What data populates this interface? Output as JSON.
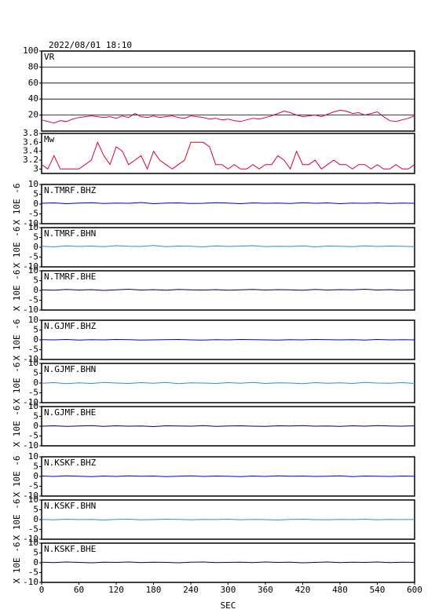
{
  "chart_data": [
    {
      "type": "line",
      "title": "2022/08/01 18:10",
      "xlim": [
        0,
        600
      ],
      "ylim": [
        0,
        100
      ],
      "yticks": [
        20,
        40,
        60,
        80,
        100
      ],
      "grid": true,
      "x": [
        0,
        10,
        20,
        30,
        40,
        50,
        60,
        70,
        80,
        90,
        100,
        110,
        120,
        130,
        140,
        150,
        160,
        170,
        180,
        190,
        200,
        210,
        220,
        230,
        240,
        250,
        260,
        270,
        280,
        290,
        300,
        310,
        320,
        330,
        340,
        350,
        360,
        370,
        380,
        390,
        400,
        410,
        420,
        430,
        440,
        450,
        460,
        470,
        480,
        490,
        500,
        510,
        520,
        530,
        540,
        550,
        560,
        570,
        580,
        590,
        600
      ],
      "series": [
        {
          "name": "VR",
          "color": "#dd0033",
          "values": [
            14,
            12,
            10,
            13,
            12,
            15,
            17,
            18,
            19,
            18,
            17,
            18,
            16,
            19,
            17,
            22,
            18,
            17,
            19,
            17,
            18,
            19,
            17,
            16,
            19,
            18,
            17,
            15,
            16,
            14,
            15,
            13,
            12,
            14,
            16,
            15,
            17,
            19,
            22,
            25,
            23,
            20,
            18,
            19,
            20,
            18,
            21,
            24,
            26,
            25,
            22,
            23,
            20,
            22,
            24,
            18,
            13,
            12,
            14,
            16,
            19
          ]
        }
      ]
    },
    {
      "type": "line",
      "xlim": [
        0,
        600
      ],
      "ylim": [
        2.9,
        3.8
      ],
      "yticks": [
        3.0,
        3.2,
        3.4,
        3.6,
        3.8
      ],
      "x": [
        0,
        10,
        20,
        30,
        40,
        50,
        60,
        70,
        80,
        90,
        100,
        110,
        120,
        130,
        140,
        150,
        160,
        170,
        180,
        190,
        200,
        210,
        220,
        230,
        240,
        250,
        260,
        270,
        280,
        290,
        300,
        310,
        320,
        330,
        340,
        350,
        360,
        370,
        380,
        390,
        400,
        410,
        420,
        430,
        440,
        450,
        460,
        470,
        480,
        490,
        500,
        510,
        520,
        530,
        540,
        550,
        560,
        570,
        580,
        590,
        600
      ],
      "series": [
        {
          "name": "Mw",
          "color": "#dd0033",
          "values": [
            3.1,
            3.0,
            3.3,
            3.0,
            3.0,
            3.0,
            3.0,
            3.1,
            3.2,
            3.6,
            3.3,
            3.1,
            3.5,
            3.4,
            3.1,
            3.2,
            3.3,
            3.0,
            3.4,
            3.2,
            3.1,
            3.0,
            3.1,
            3.2,
            3.6,
            3.6,
            3.6,
            3.5,
            3.1,
            3.1,
            3.0,
            3.1,
            3.0,
            3.0,
            3.1,
            3.0,
            3.1,
            3.1,
            3.3,
            3.2,
            3.0,
            3.4,
            3.1,
            3.1,
            3.2,
            3.0,
            3.1,
            3.2,
            3.1,
            3.1,
            3.0,
            3.1,
            3.1,
            3.0,
            3.1,
            3.0,
            3.0,
            3.1,
            3.0,
            3.0,
            3.1
          ]
        }
      ]
    },
    {
      "type": "line",
      "xlim": [
        0,
        600
      ],
      "ylim": [
        -10,
        10
      ],
      "yticks": [
        -10,
        -5,
        0,
        5,
        10
      ],
      "ylabel": "X 10E -6",
      "x": [
        0,
        20,
        40,
        60,
        80,
        100,
        120,
        140,
        160,
        180,
        200,
        220,
        240,
        260,
        280,
        300,
        320,
        340,
        360,
        380,
        400,
        420,
        440,
        460,
        480,
        500,
        520,
        540,
        560,
        580,
        600
      ],
      "series": [
        {
          "name": "N.TMRF.BHZ",
          "color": "#0000cc",
          "values": [
            0.4,
            0.6,
            0.2,
            0.5,
            0.7,
            0.3,
            0.5,
            0.4,
            0.8,
            0.2,
            0.5,
            0.6,
            0.3,
            0.4,
            0.7,
            0.5,
            0.2,
            0.6,
            0.4,
            0.5,
            0.3,
            0.7,
            0.4,
            0.6,
            0.2,
            0.5,
            0.4,
            0.6,
            0.3,
            0.5,
            0.4
          ]
        }
      ]
    },
    {
      "type": "line",
      "xlim": [
        0,
        600
      ],
      "ylim": [
        -10,
        10
      ],
      "yticks": [
        -10,
        -5,
        0,
        5,
        10
      ],
      "ylabel": "X 10E -6",
      "x": [
        0,
        20,
        40,
        60,
        80,
        100,
        120,
        140,
        160,
        180,
        200,
        220,
        240,
        260,
        280,
        300,
        320,
        340,
        360,
        380,
        400,
        420,
        440,
        460,
        480,
        500,
        520,
        540,
        560,
        580,
        600
      ],
      "series": [
        {
          "name": "N.TMRF.BHN",
          "color": "#2a8ae6",
          "values": [
            0.5,
            0.2,
            0.7,
            0.4,
            0.6,
            0.3,
            0.8,
            0.5,
            0.4,
            0.9,
            0.3,
            0.6,
            0.5,
            0.2,
            0.7,
            0.4,
            0.6,
            0.8,
            0.3,
            0.5,
            0.4,
            0.7,
            0.2,
            0.6,
            0.5,
            0.3,
            0.7,
            0.4,
            0.6,
            0.5,
            0.3
          ]
        }
      ]
    },
    {
      "type": "line",
      "xlim": [
        0,
        600
      ],
      "ylim": [
        -10,
        10
      ],
      "yticks": [
        -10,
        -5,
        0,
        5,
        10
      ],
      "ylabel": "X 10E -6",
      "x": [
        0,
        20,
        40,
        60,
        80,
        100,
        120,
        140,
        160,
        180,
        200,
        220,
        240,
        260,
        280,
        300,
        320,
        340,
        360,
        380,
        400,
        420,
        440,
        460,
        480,
        500,
        520,
        540,
        560,
        580,
        600
      ],
      "series": [
        {
          "name": "N.TMRF.BHE",
          "color": "#000066",
          "values": [
            0.3,
            0.1,
            0.5,
            0.2,
            0.4,
            0.0,
            0.3,
            0.6,
            0.2,
            0.4,
            0.1,
            0.5,
            0.3,
            0.2,
            0.4,
            0.1,
            0.3,
            0.5,
            0.2,
            0.4,
            0.3,
            0.1,
            0.5,
            0.2,
            0.4,
            0.3,
            0.6,
            0.2,
            0.4,
            0.1,
            0.3
          ]
        }
      ]
    },
    {
      "type": "line",
      "xlim": [
        0,
        600
      ],
      "ylim": [
        -10,
        10
      ],
      "yticks": [
        -10,
        -5,
        0,
        5,
        10
      ],
      "ylabel": "X 10E -6",
      "x": [
        0,
        20,
        40,
        60,
        80,
        100,
        120,
        140,
        160,
        180,
        200,
        220,
        240,
        260,
        280,
        300,
        320,
        340,
        360,
        380,
        400,
        420,
        440,
        460,
        480,
        500,
        520,
        540,
        560,
        580,
        600
      ],
      "series": [
        {
          "name": "N.GJMF.BHZ",
          "color": "#0000cc",
          "values": [
            0.1,
            0.0,
            0.2,
            -0.1,
            0.1,
            0.0,
            0.2,
            0.1,
            -0.1,
            0.0,
            0.1,
            0.2,
            0.0,
            -0.1,
            0.1,
            0.0,
            0.2,
            0.1,
            0.0,
            -0.1,
            0.1,
            0.0,
            0.2,
            0.1,
            0.0,
            0.1,
            -0.1,
            0.2,
            0.0,
            0.1,
            0.0
          ]
        }
      ]
    },
    {
      "type": "line",
      "xlim": [
        0,
        600
      ],
      "ylim": [
        -10,
        10
      ],
      "yticks": [
        -10,
        -5,
        0,
        5,
        10
      ],
      "ylabel": "X 10E -6",
      "x": [
        0,
        20,
        40,
        60,
        80,
        100,
        120,
        140,
        160,
        180,
        200,
        220,
        240,
        260,
        280,
        300,
        320,
        340,
        360,
        380,
        400,
        420,
        440,
        460,
        480,
        500,
        520,
        540,
        560,
        580,
        600
      ],
      "series": [
        {
          "name": "N.GJMF.BHN",
          "color": "#2a8ae6",
          "values": [
            -0.1,
            0.2,
            -0.3,
            0.1,
            -0.2,
            0.3,
            0.0,
            -0.2,
            0.2,
            -0.1,
            0.3,
            -0.3,
            0.1,
            0.0,
            -0.2,
            0.2,
            -0.1,
            0.3,
            -0.2,
            0.1,
            0.0,
            -0.3,
            0.2,
            -0.1,
            0.1,
            -0.2,
            0.3,
            0.0,
            -0.1,
            0.2,
            -0.2
          ]
        }
      ]
    },
    {
      "type": "line",
      "xlim": [
        0,
        600
      ],
      "ylim": [
        -10,
        10
      ],
      "yticks": [
        -10,
        -5,
        0,
        5,
        10
      ],
      "ylabel": "X 10E -6",
      "x": [
        0,
        20,
        40,
        60,
        80,
        100,
        120,
        140,
        160,
        180,
        200,
        220,
        240,
        260,
        280,
        300,
        320,
        340,
        360,
        380,
        400,
        420,
        440,
        460,
        480,
        500,
        520,
        540,
        560,
        580,
        600
      ],
      "series": [
        {
          "name": "N.GJMF.BHE",
          "color": "#000066",
          "values": [
            0.0,
            0.2,
            -0.1,
            0.1,
            0.3,
            -0.1,
            0.2,
            0.0,
            0.1,
            -0.2,
            0.2,
            0.1,
            0.0,
            0.3,
            -0.1,
            0.1,
            0.2,
            0.0,
            -0.1,
            0.2,
            0.1,
            0.3,
            0.0,
            0.1,
            -0.1,
            0.2,
            0.0,
            0.3,
            0.1,
            0.0,
            0.2
          ]
        }
      ]
    },
    {
      "type": "line",
      "xlim": [
        0,
        600
      ],
      "ylim": [
        -10,
        10
      ],
      "yticks": [
        -10,
        -5,
        0,
        5,
        10
      ],
      "ylabel": "X 10E -6",
      "x": [
        0,
        20,
        40,
        60,
        80,
        100,
        120,
        140,
        160,
        180,
        200,
        220,
        240,
        260,
        280,
        300,
        320,
        340,
        360,
        380,
        400,
        420,
        440,
        460,
        480,
        500,
        520,
        540,
        560,
        580,
        600
      ],
      "series": [
        {
          "name": "N.KSKF.BHZ",
          "color": "#0000cc",
          "values": [
            0.2,
            0.0,
            0.3,
            0.1,
            -0.1,
            0.2,
            0.0,
            0.3,
            0.1,
            0.2,
            -0.1,
            0.1,
            0.3,
            0.0,
            0.2,
            0.1,
            -0.1,
            0.2,
            0.0,
            0.3,
            0.1,
            0.2,
            0.0,
            0.1,
            0.3,
            -0.1,
            0.2,
            0.1,
            0.0,
            0.2,
            0.1
          ]
        }
      ]
    },
    {
      "type": "line",
      "xlim": [
        0,
        600
      ],
      "ylim": [
        -10,
        10
      ],
      "yticks": [
        -10,
        -5,
        0,
        5,
        10
      ],
      "ylabel": "X 10E -6",
      "x": [
        0,
        20,
        40,
        60,
        80,
        100,
        120,
        140,
        160,
        180,
        200,
        220,
        240,
        260,
        280,
        300,
        320,
        340,
        360,
        380,
        400,
        420,
        440,
        460,
        480,
        500,
        520,
        540,
        560,
        580,
        600
      ],
      "series": [
        {
          "name": "N.KSKF.BHN",
          "color": "#2a8ae6",
          "values": [
            0.1,
            -0.1,
            0.2,
            0.0,
            0.1,
            -0.2,
            0.1,
            0.2,
            -0.1,
            0.0,
            0.2,
            0.1,
            -0.1,
            0.1,
            0.0,
            0.2,
            -0.1,
            0.1,
            0.0,
            -0.2,
            0.1,
            0.2,
            0.0,
            -0.1,
            0.1,
            0.0,
            0.2,
            -0.1,
            0.1,
            0.0,
            0.1
          ]
        }
      ]
    },
    {
      "type": "line",
      "xlim": [
        0,
        600
      ],
      "ylim": [
        -10,
        10
      ],
      "yticks": [
        -10,
        -5,
        0,
        5,
        10
      ],
      "ylabel": "X 10E -6",
      "xticks": [
        0,
        60,
        120,
        180,
        240,
        300,
        360,
        420,
        480,
        540,
        600
      ],
      "xlabel": "SEC",
      "x": [
        0,
        20,
        40,
        60,
        80,
        100,
        120,
        140,
        160,
        180,
        200,
        220,
        240,
        260,
        280,
        300,
        320,
        340,
        360,
        380,
        400,
        420,
        440,
        460,
        480,
        500,
        520,
        540,
        560,
        580,
        600
      ],
      "series": [
        {
          "name": "N.KSKF.BHE",
          "color": "#000066",
          "values": [
            0.3,
            0.1,
            0.4,
            0.2,
            0.0,
            0.3,
            0.2,
            0.4,
            0.1,
            0.3,
            0.2,
            0.0,
            0.3,
            0.4,
            0.1,
            0.2,
            0.3,
            0.1,
            0.4,
            0.2,
            0.3,
            0.0,
            0.2,
            0.4,
            0.1,
            0.3,
            0.2,
            0.4,
            0.1,
            0.3,
            0.2
          ]
        }
      ]
    }
  ]
}
